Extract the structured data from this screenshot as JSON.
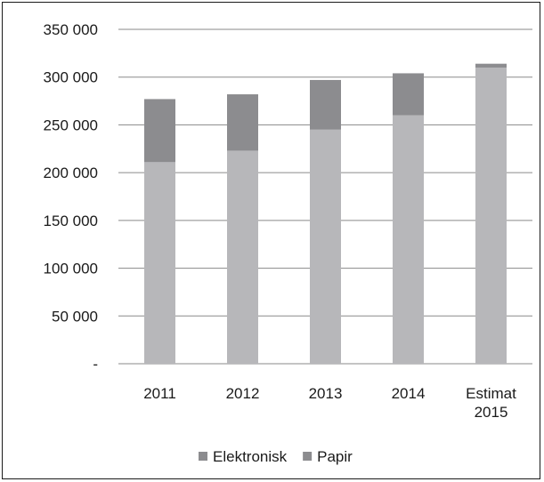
{
  "chart_data": {
    "type": "bar",
    "stacked": true,
    "categories": [
      [
        "2011"
      ],
      [
        "2012"
      ],
      [
        "2013"
      ],
      [
        "2014"
      ],
      [
        "Estimat",
        "2015"
      ]
    ],
    "series": [
      {
        "name": "Papir",
        "values": [
          211000,
          223000,
          245000,
          260000,
          310000
        ],
        "color": "#b7b7ba"
      },
      {
        "name": "Elektronisk",
        "values": [
          66000,
          59000,
          52000,
          44000,
          4000
        ],
        "color": "#8c8c8f"
      }
    ],
    "ylim": [
      0,
      350000
    ],
    "y_ticks": [
      {
        "value": 0,
        "label": "-"
      },
      {
        "value": 50000,
        "label": "50 000"
      },
      {
        "value": 100000,
        "label": "100 000"
      },
      {
        "value": 150000,
        "label": "150 000"
      },
      {
        "value": 200000,
        "label": "200 000"
      },
      {
        "value": 250000,
        "label": "250 000"
      },
      {
        "value": 300000,
        "label": "300 000"
      },
      {
        "value": 350000,
        "label": "350 000"
      }
    ],
    "legend": {
      "position": "bottom",
      "items": [
        {
          "label": "Elektronisk",
          "color": "#8c8c8f"
        },
        {
          "label": "Papir",
          "color": "#8c8c8f"
        }
      ]
    },
    "grid": true,
    "grid_color": "#8a8a8a"
  }
}
